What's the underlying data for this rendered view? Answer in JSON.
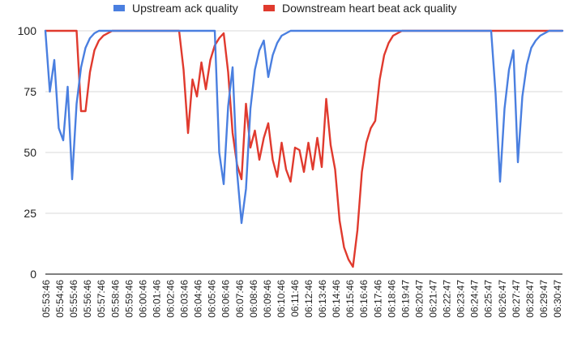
{
  "chart_data": {
    "type": "line",
    "title": "",
    "xlabel": "",
    "ylabel": "",
    "ylim": [
      0,
      100
    ],
    "yticks": [
      0,
      25,
      50,
      75,
      100
    ],
    "grid": "horizontal",
    "legend_position": "top",
    "x_tick_labels": [
      "05:53:46",
      "05:54:46",
      "05:55:46",
      "05:56:46",
      "05:57:46",
      "05:58:46",
      "05:59:46",
      "06:00:46",
      "06:01:46",
      "06:02:46",
      "06:03:46",
      "06:04:46",
      "06:05:46",
      "06:06:46",
      "06:07:46",
      "06:08:46",
      "06:09:46",
      "06:10:46",
      "06:11:46",
      "06:12:46",
      "06:13:46",
      "06:14:46",
      "06:15:46",
      "06:16:46",
      "06:17:46",
      "06:18:46",
      "06:19:47",
      "06:20:47",
      "06:21:47",
      "06:22:47",
      "06:23:47",
      "06:24:47",
      "06:25:47",
      "06:26:47",
      "06:27:47",
      "06:28:47",
      "06:29:47",
      "06:30:47"
    ],
    "series": [
      {
        "name": "Upstream ack quality",
        "color": "#4a7fe0",
        "values": [
          100,
          75,
          88,
          60,
          55,
          77,
          39,
          70,
          85,
          93,
          97,
          99,
          100,
          100,
          100,
          100,
          100,
          100,
          100,
          100,
          100,
          100,
          100,
          100,
          100,
          100,
          100,
          100,
          100,
          100,
          100,
          100,
          100,
          100,
          100,
          100,
          100,
          100,
          100,
          50,
          37,
          69,
          85,
          42,
          21,
          35,
          68,
          84,
          92,
          96,
          81,
          90,
          95,
          98,
          99,
          100,
          100,
          100,
          100,
          100,
          100,
          100,
          100,
          100,
          100,
          100,
          100,
          100,
          100,
          100,
          100,
          100,
          100,
          100,
          100,
          100,
          100,
          100,
          100,
          100,
          100,
          100,
          100,
          100,
          100,
          100,
          100,
          100,
          100,
          100,
          100,
          100,
          100,
          100,
          100,
          100,
          100,
          100,
          100,
          100,
          100,
          74,
          38,
          68,
          84,
          92,
          46,
          73,
          86,
          93,
          96,
          98,
          99,
          100,
          100,
          100,
          100
        ]
      },
      {
        "name": "Downstream heart beat ack quality",
        "color": "#e03a2e",
        "values": [
          100,
          100,
          100,
          100,
          100,
          100,
          100,
          100,
          67,
          67,
          83,
          92,
          96,
          98,
          99,
          100,
          100,
          100,
          100,
          100,
          100,
          100,
          100,
          100,
          100,
          100,
          100,
          100,
          100,
          100,
          100,
          84,
          58,
          80,
          73,
          87,
          76,
          88,
          94,
          97,
          99,
          83,
          58,
          45,
          39,
          70,
          52,
          59,
          47,
          56,
          62,
          47,
          40,
          54,
          43,
          38,
          52,
          51,
          42,
          54,
          43,
          56,
          44,
          72,
          53,
          43,
          22,
          11,
          6,
          3,
          18,
          42,
          54,
          60,
          63,
          80,
          90,
          95,
          98,
          99,
          100,
          100,
          100,
          100,
          100,
          100,
          100,
          100,
          100,
          100,
          100,
          100,
          100,
          100,
          100,
          100,
          100,
          100,
          100,
          100,
          100,
          100,
          100,
          100,
          100,
          100,
          100,
          100,
          100,
          100,
          100,
          100,
          100,
          100,
          100,
          100,
          100
        ]
      }
    ]
  }
}
